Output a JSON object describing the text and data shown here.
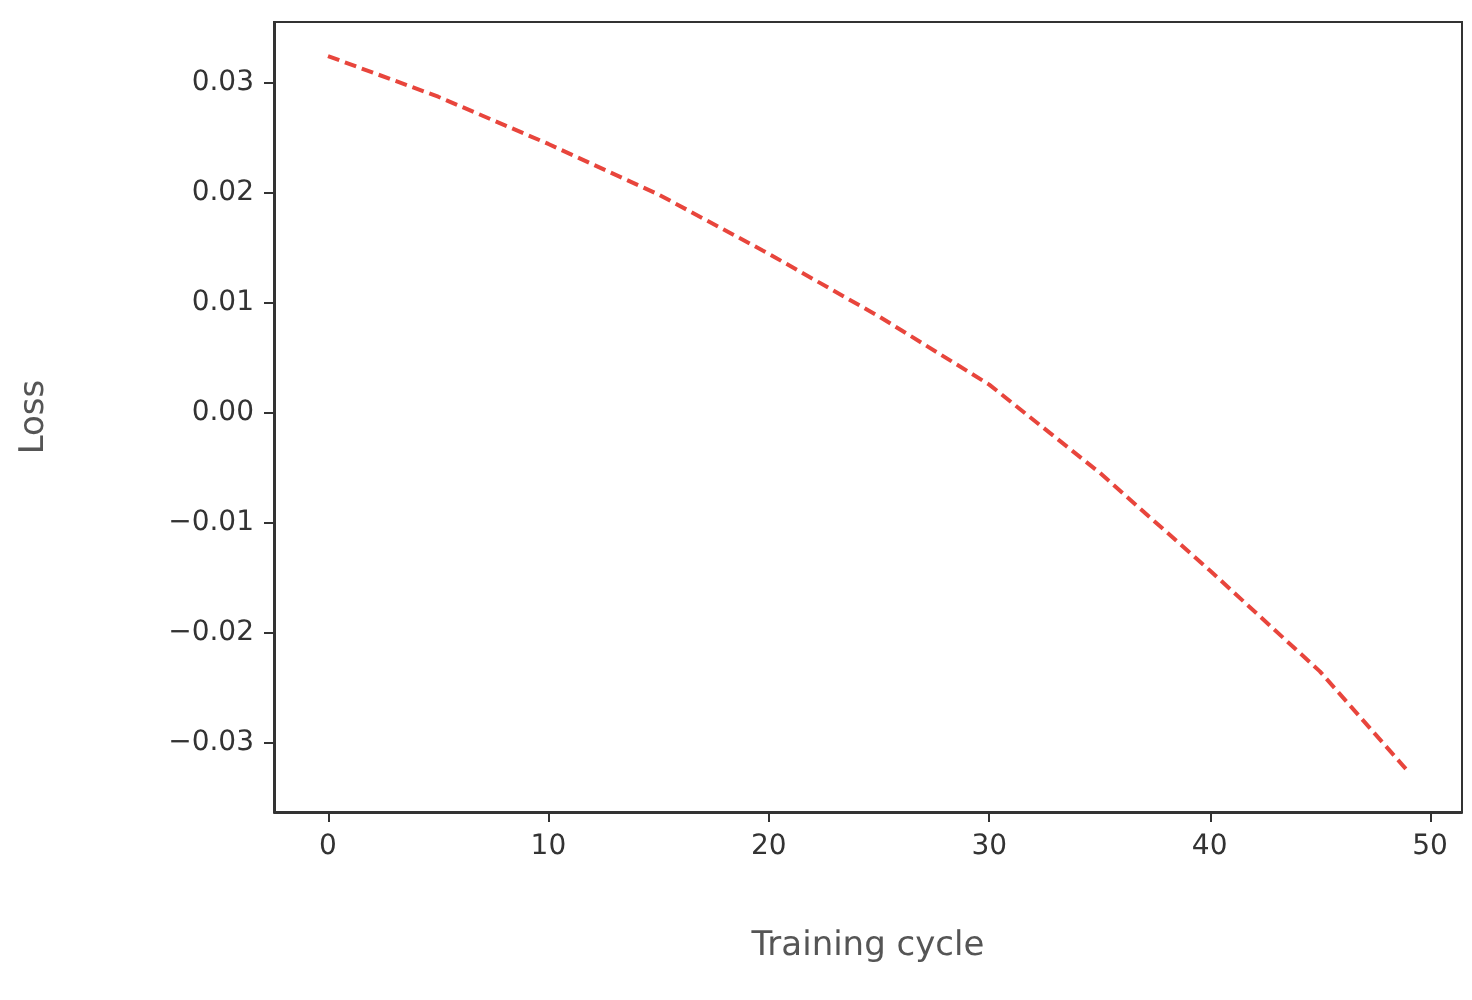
{
  "chart_data": {
    "type": "line",
    "xlabel": "Training cycle",
    "ylabel": "Loss",
    "x": [
      0,
      5,
      10,
      15,
      20,
      25,
      30,
      35,
      40,
      45,
      49
    ],
    "series": [
      {
        "color": "#e8453c",
        "values": [
          0.0324,
          0.0287,
          0.0244,
          0.0198,
          0.0144,
          0.0087,
          0.0025,
          -0.0055,
          -0.0144,
          -0.0236,
          -0.0327
        ]
      }
    ],
    "xlim": [
      -2.45,
      51.45
    ],
    "xticks": [
      0,
      10,
      20,
      30,
      40,
      50
    ],
    "ylim": [
      -0.0364,
      0.0355
    ],
    "yticks": [
      {
        "value": -0.03,
        "label": "−0.03"
      },
      {
        "value": -0.02,
        "label": "−0.02"
      },
      {
        "value": -0.01,
        "label": "−0.01"
      },
      {
        "value": 0,
        "label": "0.00"
      },
      {
        "value": 0.01,
        "label": "0.01"
      },
      {
        "value": 0.02,
        "label": "0.02"
      },
      {
        "value": 0.03,
        "label": "0.03"
      }
    ],
    "grid": false,
    "marker": "none",
    "line_style": "dashed"
  }
}
